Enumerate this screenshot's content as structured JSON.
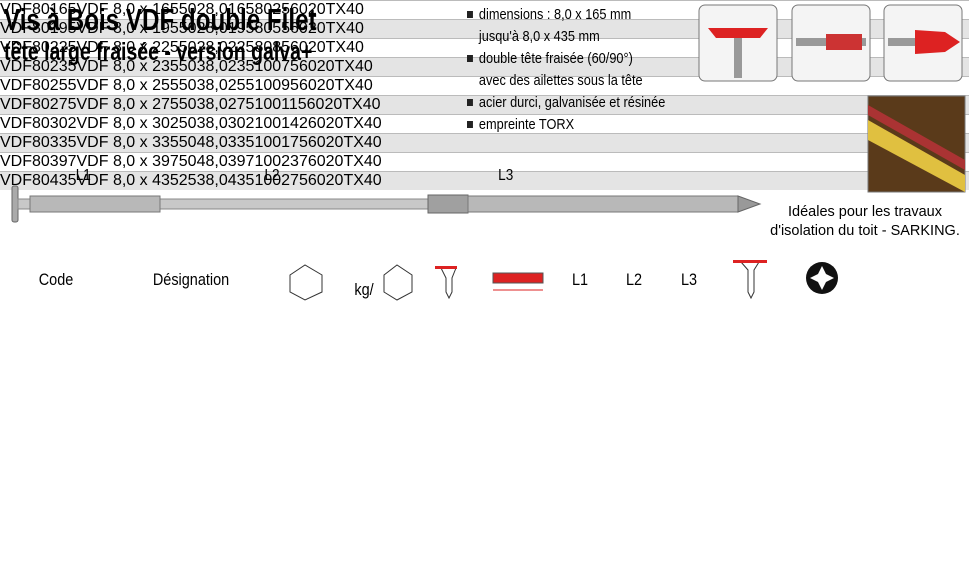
{
  "header": {
    "title": "Vis à Bois VDF double Filet",
    "subtitle": "tête large fraisée - version galva+"
  },
  "features": [
    [
      "dimensions : 8,0 x 165 mm",
      "jusqu'à 8,0 x 435 mm"
    ],
    [
      "double tête fraisée (60/90°)",
      "avec des ailettes sous la tête"
    ],
    [
      "acier durci, galvanisée et résinée"
    ],
    [
      "empreinte TORX"
    ]
  ],
  "diagram": {
    "labels": [
      "L1",
      "L2",
      "L3"
    ]
  },
  "caption": [
    "Idéales pour les travaux",
    "d'isolation du toit - SARKING."
  ],
  "table": {
    "headers": {
      "code": "Code",
      "designation": "Désignation",
      "weight": "kg/",
      "l1": "L1",
      "l2": "L2",
      "l3": "L3"
    },
    "rows": [
      [
        "VDF80165",
        "VDF 8,0 x 165",
        "50",
        "2",
        "8,0",
        "165",
        "80",
        "25",
        "60",
        "20",
        "TX40"
      ],
      [
        "VDF80195",
        "VDF 8,0 x 195",
        "50",
        "2",
        "8,0",
        "195",
        "80",
        "55",
        "60",
        "20",
        "TX40"
      ],
      [
        "VDF80225",
        "VDF 8,0 x 225",
        "50",
        "2",
        "8,0",
        "225",
        "80",
        "85",
        "60",
        "20",
        "TX40"
      ],
      [
        "VDF80235",
        "VDF 8,0 x 235",
        "50",
        "3",
        "8,0",
        "235",
        "100",
        "75",
        "60",
        "20",
        "TX40"
      ],
      [
        "VDF80255",
        "VDF 8,0 x 255",
        "50",
        "3",
        "8,0",
        "255",
        "100",
        "95",
        "60",
        "20",
        "TX40"
      ],
      [
        "VDF80275",
        "VDF 8,0 x 275",
        "50",
        "3",
        "8,0",
        "275",
        "100",
        "115",
        "60",
        "20",
        "TX40"
      ],
      [
        "VDF80302",
        "VDF 8,0 x 302",
        "50",
        "3",
        "8,0",
        "302",
        "100",
        "142",
        "60",
        "20",
        "TX40"
      ],
      [
        "VDF80335",
        "VDF 8,0 x 335",
        "50",
        "4",
        "8,0",
        "335",
        "100",
        "175",
        "60",
        "20",
        "TX40"
      ],
      [
        "VDF80397",
        "VDF 8,0 x 397",
        "50",
        "4",
        "8,0",
        "397",
        "100",
        "237",
        "60",
        "20",
        "TX40"
      ],
      [
        "VDF80435",
        "VDF 8,0 x 435",
        "25",
        "3",
        "8,0",
        "435",
        "100",
        "275",
        "60",
        "20",
        "TX40"
      ]
    ]
  }
}
